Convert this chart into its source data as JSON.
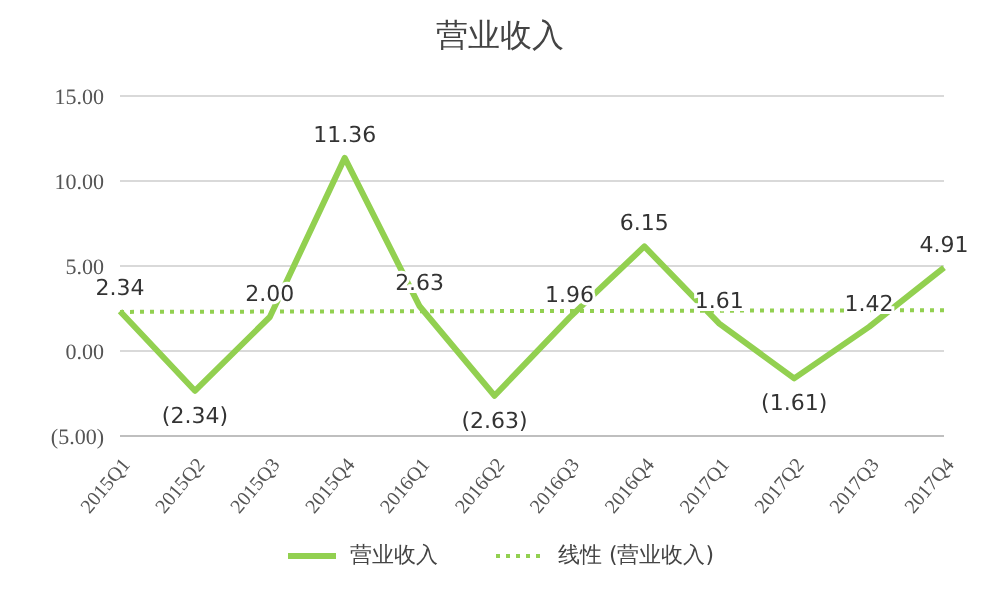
{
  "chart_data": {
    "type": "line",
    "title": "营业收入",
    "categories": [
      "2015Q1",
      "2015Q2",
      "2015Q3",
      "2015Q4",
      "2016Q1",
      "2016Q2",
      "2016Q3",
      "2016Q4",
      "2017Q1",
      "2017Q2",
      "2017Q3",
      "2017Q4"
    ],
    "series": [
      {
        "name": "营业收入",
        "color": "#92d050",
        "line_style": "solid",
        "values": [
          2.34,
          -2.34,
          2.0,
          11.36,
          2.63,
          -2.63,
          1.96,
          6.15,
          1.61,
          -1.61,
          1.42,
          4.91
        ],
        "value_labels": [
          "2.34",
          "(2.34)",
          "2.00",
          "11.36",
          "2.63",
          "(2.63)",
          "1.96",
          "6.15",
          "1.61",
          "(1.61)",
          "1.42",
          "4.91"
        ]
      },
      {
        "name": "线性 (营业收入)",
        "color": "#92d050",
        "line_style": "dotted",
        "values": [
          2.3,
          null,
          null,
          null,
          null,
          null,
          null,
          null,
          null,
          null,
          null,
          2.4
        ]
      }
    ],
    "ylim": [
      -5,
      15
    ],
    "yticks": [
      {
        "value": -5,
        "label": "(5.00)"
      },
      {
        "value": 0,
        "label": "0.00"
      },
      {
        "value": 5,
        "label": "5.00"
      },
      {
        "value": 10,
        "label": "10.00"
      },
      {
        "value": 15,
        "label": "15.00"
      }
    ],
    "grid": "y",
    "legend": "bottom",
    "marker": "none"
  }
}
